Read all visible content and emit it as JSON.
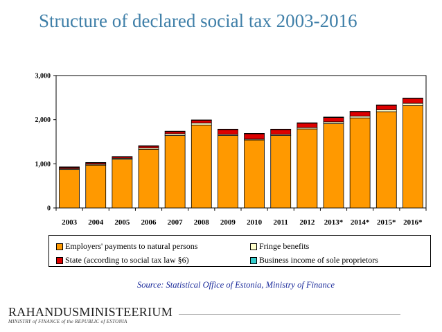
{
  "slide": {
    "title": "Structure of declared social tax 2003-2016",
    "source": "Source: Statistical Office of Estonia, Ministry of Finance",
    "logo_main": "RAHANDUSMINISTEERIUM",
    "logo_sub": "MINISTRY of FINANCE of the REPUBLIC of ESTONIA"
  },
  "chart_data": {
    "type": "bar",
    "stacked": true,
    "categories": [
      "2003",
      "2004",
      "2005",
      "2006",
      "2007",
      "2008",
      "2009",
      "2010",
      "2011",
      "2012",
      "2013*",
      "2014*",
      "2015*",
      "2016*"
    ],
    "ylim": [
      0,
      3000
    ],
    "yticks": [
      "0",
      "1,000",
      "2,000",
      "3,000"
    ],
    "ytick_values": [
      0,
      1000,
      2000,
      3000
    ],
    "grid": false,
    "legend_position": "bottom",
    "series": [
      {
        "name": "Employers' payments to natural persons",
        "color": "#ff9900",
        "values": [
          870,
          970,
          1100,
          1330,
          1640,
          1880,
          1640,
          1540,
          1640,
          1790,
          1910,
          2040,
          2180,
          2320
        ]
      },
      {
        "name": "Fringe benefits",
        "color": "#ffffcc",
        "values": [
          20,
          20,
          25,
          30,
          40,
          45,
          25,
          20,
          25,
          30,
          40,
          40,
          45,
          50
        ]
      },
      {
        "name": "State (according to social tax law §6)",
        "color": "#dd0000",
        "values": [
          30,
          30,
          30,
          40,
          50,
          60,
          110,
          120,
          110,
          100,
          100,
          100,
          100,
          110
        ]
      },
      {
        "name": "Business income of sole proprietors",
        "color": "#33cccc",
        "values": [
          10,
          10,
          10,
          10,
          10,
          10,
          10,
          10,
          10,
          10,
          10,
          10,
          10,
          10
        ]
      }
    ]
  }
}
